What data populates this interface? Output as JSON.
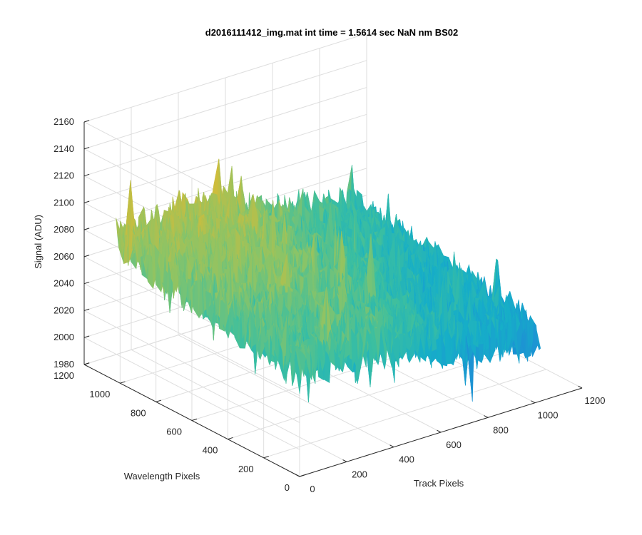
{
  "chart_data": {
    "type": "surface",
    "title": "d2016111412_img.mat int time = 1.5614 sec  NaN nm BS02",
    "xlabel": "Track Pixels",
    "ylabel": "Wavelength Pixels",
    "zlabel": "Signal (ADU)",
    "xlim": [
      0,
      1200
    ],
    "ylim": [
      0,
      1200
    ],
    "zlim": [
      1980,
      2160
    ],
    "x_ticks": [
      "0",
      "200",
      "400",
      "600",
      "800",
      "1000",
      "1200"
    ],
    "y_ticks": [
      "0",
      "200",
      "400",
      "600",
      "800",
      "1000",
      "1200"
    ],
    "z_ticks": [
      "1980",
      "2000",
      "2020",
      "2040",
      "2060",
      "2080",
      "2100",
      "2120",
      "2140",
      "2160"
    ],
    "data_extent": {
      "x": [
        1,
        1024
      ],
      "y": [
        1,
        1024
      ]
    },
    "signal_profile": {
      "mean_at_origin_corner": 2058,
      "mean_at_far_x_corner": 2028,
      "mean_at_far_y_corner": 2082,
      "peak_ridge_signal": 2090,
      "noise_amplitude": 18,
      "max_signal": 2150,
      "min_signal": 1990
    },
    "colormap": [
      "#0072bd",
      "#1d92d4",
      "#16aec8",
      "#3cbfa0",
      "#8cc466",
      "#c9bd3f",
      "#f0c030"
    ],
    "grid": true,
    "view": "3d"
  }
}
